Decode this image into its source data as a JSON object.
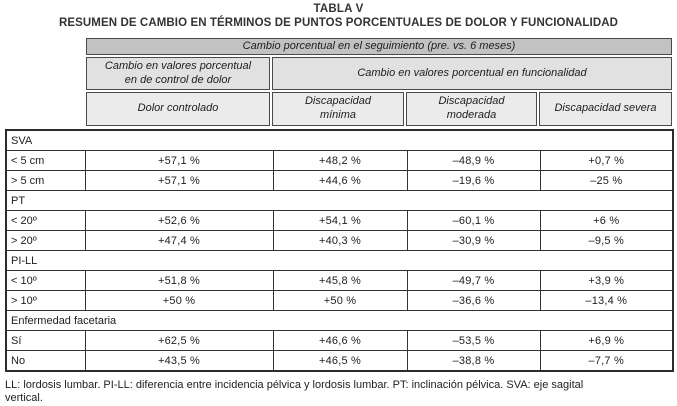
{
  "title": "TABLA V",
  "subtitle": "RESUMEN DE CAMBIO EN TÉRMINOS DE PUNTOS PORCENTUALES DE DOLOR Y FUNCIONALIDAD",
  "colors": {
    "band1_bg": "#c2c2c2",
    "band2_bg": "#e1e1e1",
    "band3_bg": "#ebebeb",
    "border": "#333333",
    "text": "#1d1d1d"
  },
  "header": {
    "band1": "Cambio porcentual en el seguimiento (pre. vs. 6 meses)",
    "band2_pain": "Cambio en valores porcentual\nen de control de dolor",
    "band2_function": "Cambio en valores porcentual en  funcionalidad",
    "columns": [
      "Dolor controlado",
      "Discapacidad\nmínima",
      "Discapacidad\nmoderada",
      "Discapacidad severa"
    ]
  },
  "table": {
    "rows": [
      {
        "type": "section",
        "label": "SVA"
      },
      {
        "type": "data",
        "label": "< 5 cm",
        "values": [
          "+57,1 %",
          "+48,2 %",
          "–48,9 %",
          "+0,7 %"
        ]
      },
      {
        "type": "data",
        "label": "> 5 cm",
        "values": [
          "+57,1 %",
          "+44,6 %",
          "–19,6 %",
          "–25 %"
        ]
      },
      {
        "type": "section",
        "label": "PT"
      },
      {
        "type": "data",
        "label": "< 20º",
        "values": [
          "+52,6 %",
          "+54,1 %",
          "–60,1 %",
          "+6 %"
        ]
      },
      {
        "type": "data",
        "label": "> 20º",
        "values": [
          "+47,4 %",
          "+40,3 %",
          "–30,9 %",
          "–9,5 %"
        ]
      },
      {
        "type": "section",
        "label": "PI-LL"
      },
      {
        "type": "data",
        "label": "< 10º",
        "values": [
          "+51,8 %",
          "+45,8 %",
          "–49,7 %",
          "+3,9 %"
        ]
      },
      {
        "type": "data",
        "label": "> 10º",
        "values": [
          "+50 %",
          "+50 %",
          "–36,6 %",
          "–13,4 %"
        ]
      },
      {
        "type": "section",
        "label": "Enfermedad facetaria"
      },
      {
        "type": "data",
        "label": "Sí",
        "values": [
          "+62,5 %",
          "+46,6 %",
          "–53,5 %",
          "+6,9 %"
        ]
      },
      {
        "type": "data",
        "label": "No",
        "values": [
          "+43,5 %",
          "+46,5 %",
          "–38,8 %",
          "–7,7 %"
        ]
      }
    ]
  },
  "footnote": "LL: lordosis lumbar. PI-LL: diferencia entre incidencia pélvica y lordosis lumbar. PT: inclinación pélvica. SVA: eje sagital\nvertical."
}
